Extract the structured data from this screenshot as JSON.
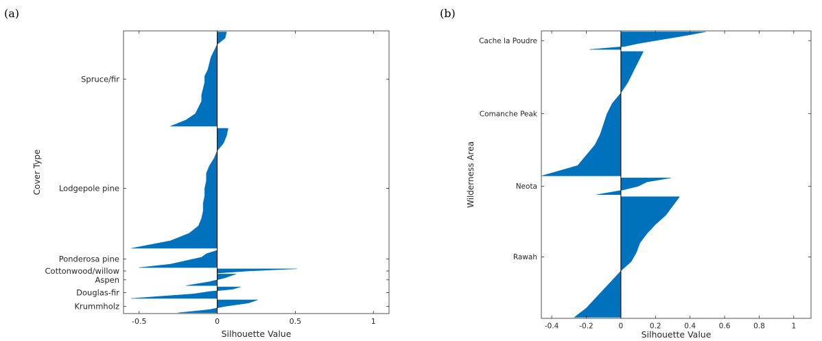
{
  "panel_labels": {
    "a": "(a)",
    "b": "(b)"
  },
  "colors": {
    "fill": "#0072BD",
    "axis": "#262626"
  },
  "chart_data": [
    {
      "id": "a",
      "type": "area",
      "subtype": "silhouette",
      "title": "",
      "xlabel": "Silhouette Value",
      "ylabel": "Cover Type",
      "xlim": [
        -0.6,
        1.1
      ],
      "xticks": [
        -0.5,
        0,
        0.5,
        1
      ],
      "xtick_labels": [
        "-0.5",
        "0",
        "0.5",
        "1"
      ],
      "grid": false,
      "clusters": [
        {
          "label": "Spruce/fir",
          "share": 0.3,
          "values": [
            0.06,
            0.05,
            0.0,
            -0.02,
            -0.04,
            -0.05,
            -0.06,
            -0.08,
            -0.08,
            -0.09,
            -0.1,
            -0.1,
            -0.12,
            -0.14,
            -0.2,
            -0.3
          ]
        },
        {
          "label": "Lodgepole pine",
          "share": 0.38,
          "values": [
            0.07,
            0.06,
            0.04,
            0.0,
            -0.02,
            -0.05,
            -0.07,
            -0.07,
            -0.08,
            -0.08,
            -0.09,
            -0.09,
            -0.1,
            -0.12,
            -0.18,
            -0.3,
            -0.55
          ]
        },
        {
          "label": "Ponderosa pine",
          "share": 0.06,
          "values": [
            0.0,
            -0.07,
            -0.1,
            -0.2,
            -0.3,
            -0.5
          ]
        },
        {
          "label": "Cottonwood/willow",
          "share": 0.015,
          "values": [
            0.51,
            0.2,
            0.0
          ]
        },
        {
          "label": "Aspen",
          "share": 0.04,
          "values": [
            0.12,
            0.05,
            -0.05,
            -0.2
          ]
        },
        {
          "label": "Douglas-fir",
          "share": 0.04,
          "values": [
            0.15,
            0.1,
            -0.05,
            -0.15,
            -0.35,
            -0.55
          ]
        },
        {
          "label": "Krummholz",
          "share": 0.045,
          "values": [
            0.26,
            0.2,
            0.05,
            -0.05,
            -0.25
          ]
        }
      ]
    },
    {
      "id": "b",
      "type": "area",
      "subtype": "silhouette",
      "title": "",
      "xlabel": "Silhouette Value",
      "ylabel": "Wilderness Area",
      "xlim": [
        -0.46,
        1.1
      ],
      "xticks": [
        -0.4,
        -0.2,
        0,
        0.2,
        0.4,
        0.6,
        0.8,
        1
      ],
      "xtick_labels": [
        "-0.4",
        "-0.2",
        "0",
        "0.2",
        "0.4",
        "0.6",
        "0.8",
        "1"
      ],
      "grid": false,
      "clusters": [
        {
          "label": "Cache la Poudre",
          "share": 0.068,
          "values": [
            0.49,
            0.4,
            0.3,
            0.2,
            0.1,
            0.02,
            -0.18
          ]
        },
        {
          "label": "Comanche Peak",
          "share": 0.44,
          "values": [
            0.13,
            0.1,
            0.07,
            0.04,
            0.0,
            -0.05,
            -0.08,
            -0.1,
            -0.12,
            -0.15,
            -0.2,
            -0.25,
            -0.46
          ]
        },
        {
          "label": "Neota",
          "share": 0.065,
          "values": [
            0.29,
            0.15,
            0.1,
            0.0,
            -0.14
          ]
        },
        {
          "label": "Rawah",
          "share": 0.427,
          "values": [
            0.34,
            0.3,
            0.26,
            0.2,
            0.15,
            0.11,
            0.09,
            0.06,
            0.0,
            -0.05,
            -0.1,
            -0.15,
            -0.2,
            -0.27
          ]
        }
      ]
    }
  ]
}
